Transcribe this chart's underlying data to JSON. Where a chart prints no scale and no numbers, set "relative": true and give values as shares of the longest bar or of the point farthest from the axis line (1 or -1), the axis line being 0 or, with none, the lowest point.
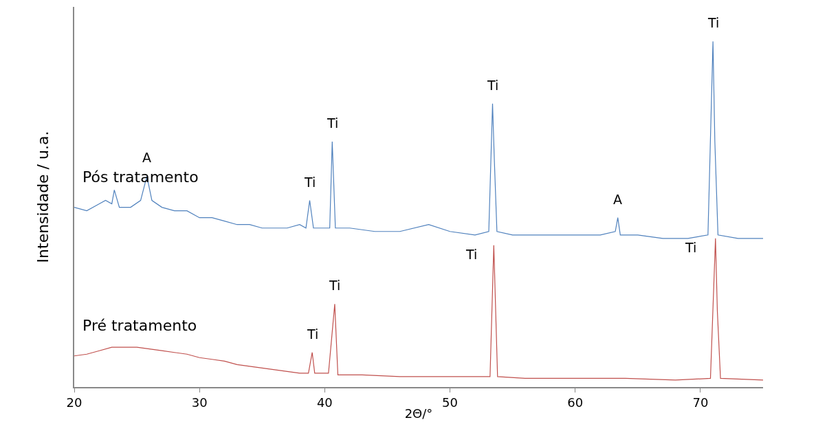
{
  "chart_data": {
    "type": "line",
    "relative": true,
    "xlabel": "2Θ/°",
    "ylabel": "Intensidade / u.a.",
    "xlim": [
      20,
      75
    ],
    "xticks": [
      20,
      30,
      40,
      50,
      60,
      70
    ],
    "legend": false,
    "marker": "none",
    "line_style": "solid",
    "series": [
      {
        "name": "Pós tratamento",
        "color": "#4f81bd",
        "x": [
          20,
          21,
          22,
          22.5,
          23,
          23.2,
          23.6,
          24.5,
          25.3,
          25.8,
          26.2,
          27,
          28,
          29,
          30,
          31,
          32,
          33,
          34,
          35,
          36,
          37,
          38,
          38.5,
          38.8,
          39.1,
          40,
          40.4,
          40.6,
          40.85,
          42,
          44,
          46,
          48.3,
          50,
          52,
          53.1,
          53.4,
          53.55,
          53.75,
          55,
          58,
          60,
          62,
          63.2,
          63.4,
          63.6,
          65,
          67,
          69,
          70.6,
          71.0,
          71.15,
          71.4,
          73,
          75
        ],
        "values": [
          0.52,
          0.51,
          0.53,
          0.54,
          0.53,
          0.57,
          0.52,
          0.52,
          0.54,
          0.61,
          0.54,
          0.52,
          0.51,
          0.51,
          0.49,
          0.49,
          0.48,
          0.47,
          0.47,
          0.46,
          0.46,
          0.46,
          0.47,
          0.46,
          0.54,
          0.46,
          0.46,
          0.46,
          0.71,
          0.46,
          0.46,
          0.45,
          0.45,
          0.47,
          0.45,
          0.44,
          0.45,
          0.82,
          0.65,
          0.45,
          0.44,
          0.44,
          0.44,
          0.44,
          0.45,
          0.49,
          0.44,
          0.44,
          0.43,
          0.43,
          0.44,
          1.0,
          0.71,
          0.44,
          0.43,
          0.43
        ]
      },
      {
        "name": "Pré tratamento",
        "color": "#c0504d",
        "x": [
          20,
          21,
          22,
          23,
          24,
          25,
          26,
          27,
          28,
          29,
          30,
          31,
          32,
          33,
          34,
          35,
          36,
          37,
          38,
          38.7,
          39.0,
          39.2,
          40.3,
          40.8,
          41.05,
          43,
          46,
          50,
          53.2,
          53.5,
          53.8,
          56,
          60,
          64,
          68,
          70.8,
          71.2,
          71.35,
          71.6,
          75
        ],
        "values": [
          0.09,
          0.095,
          0.105,
          0.115,
          0.115,
          0.115,
          0.11,
          0.105,
          0.1,
          0.095,
          0.085,
          0.08,
          0.075,
          0.065,
          0.06,
          0.055,
          0.05,
          0.045,
          0.04,
          0.04,
          0.1,
          0.04,
          0.04,
          0.24,
          0.035,
          0.035,
          0.03,
          0.03,
          0.03,
          0.41,
          0.03,
          0.025,
          0.025,
          0.025,
          0.02,
          0.025,
          0.43,
          0.22,
          0.025,
          0.02
        ]
      }
    ],
    "annotations": [
      {
        "text": "A",
        "x": 25.8,
        "y": 0.61
      },
      {
        "text": "Ti",
        "x": 38.8,
        "y": 0.54
      },
      {
        "text": "Ti",
        "x": 40.6,
        "y": 0.71
      },
      {
        "text": "Ti",
        "x": 53.4,
        "y": 0.82
      },
      {
        "text": "A",
        "x": 63.4,
        "y": 0.49
      },
      {
        "text": "Ti",
        "x": 71.0,
        "y": 1.0
      },
      {
        "text": "Ti",
        "x": 39.0,
        "y": 0.1
      },
      {
        "text": "Ti",
        "x": 40.8,
        "y": 0.24
      },
      {
        "text": "Ti",
        "x": 53.5,
        "y": 0.41
      },
      {
        "text": "Ti",
        "x": 71.2,
        "y": 0.43
      }
    ]
  }
}
